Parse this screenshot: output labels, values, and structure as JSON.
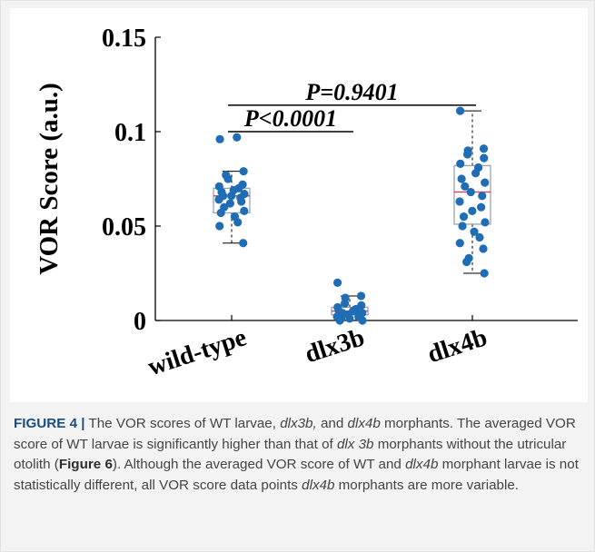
{
  "chart_data": {
    "type": "box",
    "ylabel": "VOR Score (a.u.)",
    "ylim": [
      0,
      0.15
    ],
    "yticks": [
      {
        "value": 0,
        "label": "0"
      },
      {
        "value": 0.05,
        "label": "0.05"
      },
      {
        "value": 0.1,
        "label": "0.1"
      },
      {
        "value": 0.15,
        "label": "0.15"
      }
    ],
    "categories": [
      "wild-type",
      "dlx3b",
      "dlx4b"
    ],
    "boxes": [
      {
        "category": "wild-type",
        "min": 0.041,
        "q1": 0.057,
        "median": 0.066,
        "q3": 0.07,
        "max": 0.079,
        "points": [
          0.097,
          0.096,
          0.079,
          0.077,
          0.075,
          0.072,
          0.071,
          0.07,
          0.069,
          0.068,
          0.067,
          0.066,
          0.066,
          0.065,
          0.064,
          0.063,
          0.062,
          0.06,
          0.058,
          0.057,
          0.055,
          0.052,
          0.05,
          0.041
        ]
      },
      {
        "category": "dlx3b",
        "min": 0.0,
        "q1": 0.003,
        "median": 0.005,
        "q3": 0.007,
        "max": 0.013,
        "points": [
          0.02,
          0.013,
          0.012,
          0.009,
          0.008,
          0.007,
          0.006,
          0.005,
          0.005,
          0.004,
          0.004,
          0.003,
          0.003,
          0.002,
          0.002,
          0.001,
          0.001,
          0.0,
          0.0
        ]
      },
      {
        "category": "dlx4b",
        "min": 0.025,
        "q1": 0.051,
        "median": 0.068,
        "q3": 0.082,
        "max": 0.111,
        "points": [
          0.111,
          0.091,
          0.09,
          0.088,
          0.086,
          0.083,
          0.081,
          0.078,
          0.075,
          0.073,
          0.071,
          0.068,
          0.066,
          0.063,
          0.06,
          0.058,
          0.055,
          0.052,
          0.05,
          0.047,
          0.044,
          0.041,
          0.038,
          0.033,
          0.031,
          0.025
        ]
      }
    ],
    "annotations": [
      {
        "text": "P<0.0001",
        "from": "wild-type",
        "to": "dlx3b",
        "y": 0.1
      },
      {
        "text": "P=0.9401",
        "from": "wild-type",
        "to": "dlx4b",
        "y": 0.114
      }
    ],
    "colors": {
      "points": "#1f6db5",
      "box": "#9aa0b8",
      "median": "#c9515f",
      "whisker": "#000000"
    }
  },
  "caption": {
    "label": "FIGURE 4 |",
    "segments": [
      " The VOR scores of WT larvae, ",
      "dlx3b,",
      " and ",
      "dlx4b",
      " morphants. The averaged VOR score of WT larvae is significantly higher than that of ",
      "dlx 3b",
      " morphants without the utricular otolith (",
      "Figure 6",
      "). Although the averaged VOR score of WT and ",
      "dlx4b",
      " morphant larvae is not statistically different, all VOR score data points ",
      "dlx4b",
      " morphants are more variable."
    ]
  }
}
